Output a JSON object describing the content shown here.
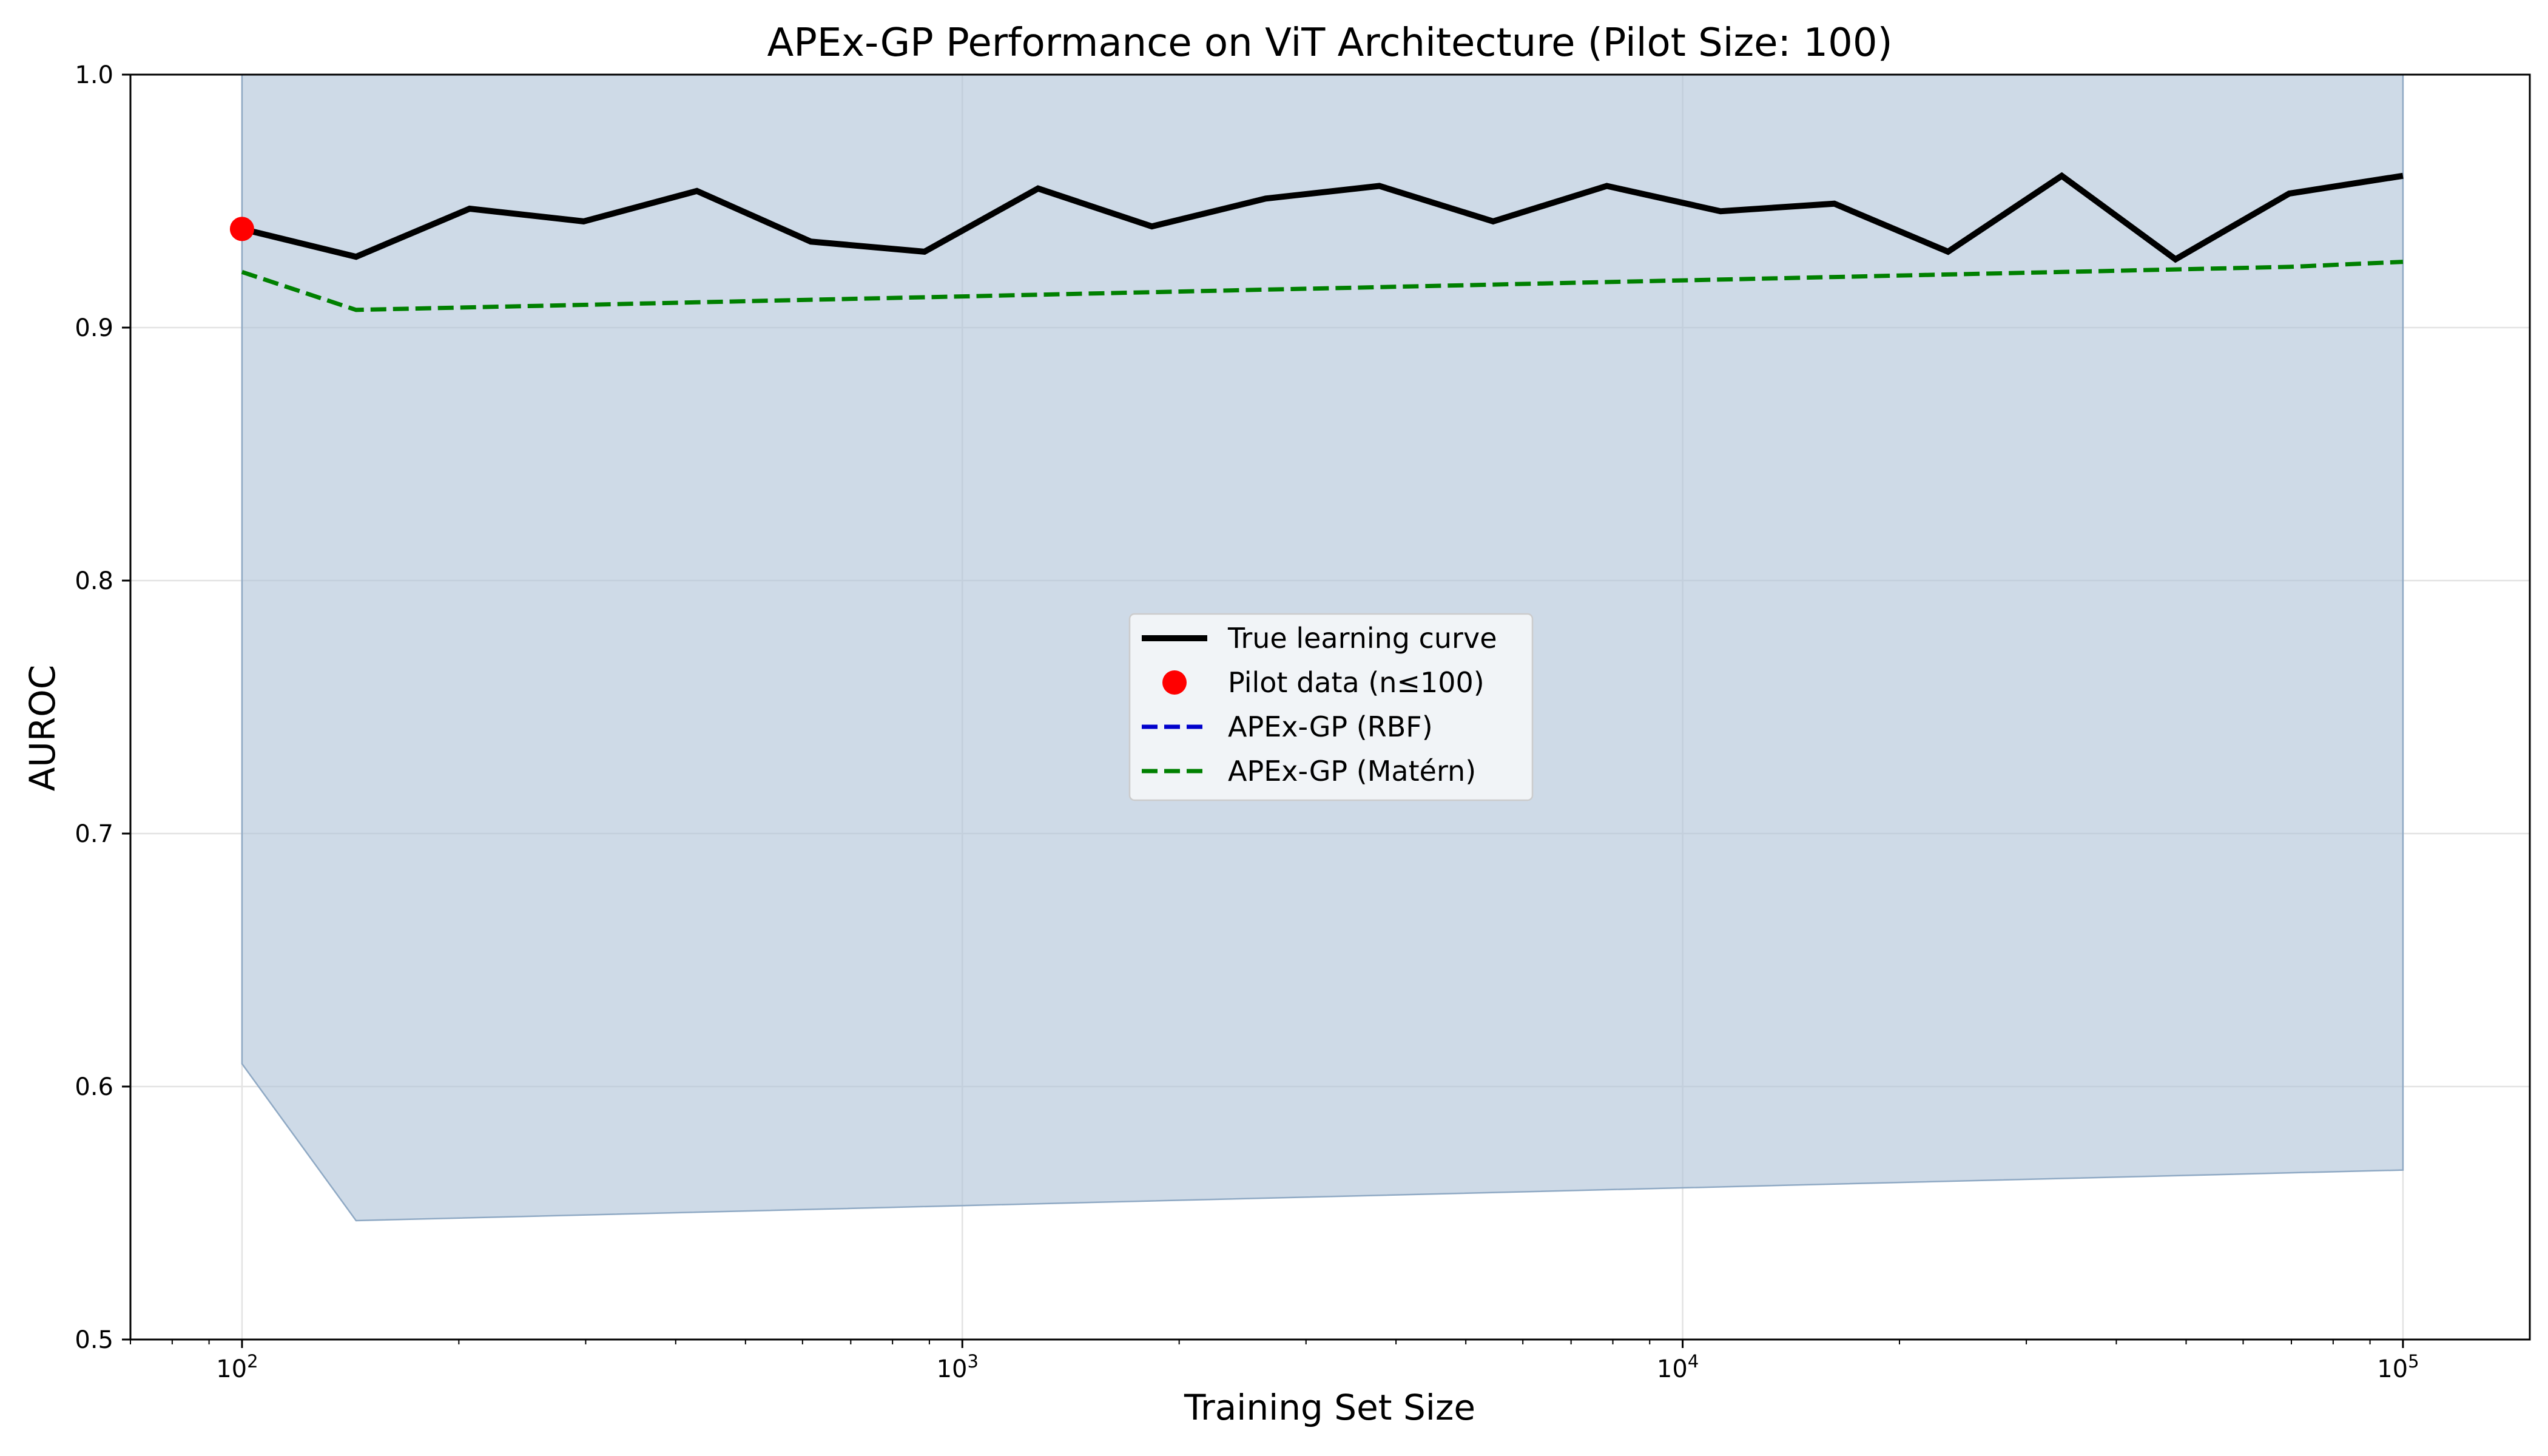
{
  "chart_data": {
    "type": "line",
    "title": "APEx-GP Performance on ViT Architecture (Pilot Size: 100)",
    "xlabel": "Training Set Size",
    "ylabel": "AUROC",
    "xscale": "log",
    "xlim": [
      70,
      150000
    ],
    "ylim": [
      0.5,
      1.0
    ],
    "grid": true,
    "legend_position": "center",
    "x_ticks": [
      {
        "value": 100,
        "base": "10",
        "exp": "2"
      },
      {
        "value": 1000,
        "base": "10",
        "exp": "3"
      },
      {
        "value": 10000,
        "base": "10",
        "exp": "4"
      },
      {
        "value": 100000,
        "base": "10",
        "exp": "5"
      }
    ],
    "y_ticks": [
      {
        "value": 0.5,
        "label": "0.5"
      },
      {
        "value": 0.6,
        "label": "0.6"
      },
      {
        "value": 0.7,
        "label": "0.7"
      },
      {
        "value": 0.8,
        "label": "0.8"
      },
      {
        "value": 0.9,
        "label": "0.9"
      },
      {
        "value": 1.0,
        "label": "1.0"
      }
    ],
    "x": [
      100,
      144,
      207,
      298,
      428,
      616,
      886,
      1274,
      1833,
      2637,
      3793,
      5456,
      7848,
      11288,
      16238,
      23357,
      33598,
      48329,
      69519,
      100000
    ],
    "series": [
      {
        "name": "True learning curve",
        "style": "solid",
        "color": "#000000",
        "values": [
          0.939,
          0.928,
          0.947,
          0.942,
          0.954,
          0.934,
          0.93,
          0.955,
          0.94,
          0.951,
          0.956,
          0.942,
          0.956,
          0.946,
          0.949,
          0.93,
          0.96,
          0.927,
          0.953,
          0.96
        ]
      },
      {
        "name": "APEx-GP (Matérn)",
        "style": "dashed",
        "color": "#008000",
        "values": [
          0.922,
          0.907,
          0.908,
          0.909,
          0.91,
          0.911,
          0.912,
          0.913,
          0.914,
          0.915,
          0.916,
          0.917,
          0.918,
          0.919,
          0.92,
          0.921,
          0.922,
          0.923,
          0.924,
          0.926
        ]
      }
    ],
    "band": {
      "color": "#b0c4d8",
      "x": [
        100,
        144,
        100000
      ],
      "upper": [
        1.0,
        1.0,
        1.0
      ],
      "lower": [
        0.609,
        0.547,
        0.567
      ]
    },
    "pilot_points": [
      {
        "x": 100,
        "y": 0.939
      }
    ],
    "pilot_color": "#ff0000",
    "legend": [
      {
        "label": "True learning curve",
        "kind": "line-solid",
        "color": "#000000"
      },
      {
        "label": "Pilot data (n≤100)",
        "kind": "marker",
        "color": "#ff0000"
      },
      {
        "label": "APEx-GP (RBF)",
        "kind": "line-dashed",
        "color": "#0000cc"
      },
      {
        "label": "APEx-GP (Matérn)",
        "kind": "line-dashed",
        "color": "#008000"
      }
    ]
  }
}
